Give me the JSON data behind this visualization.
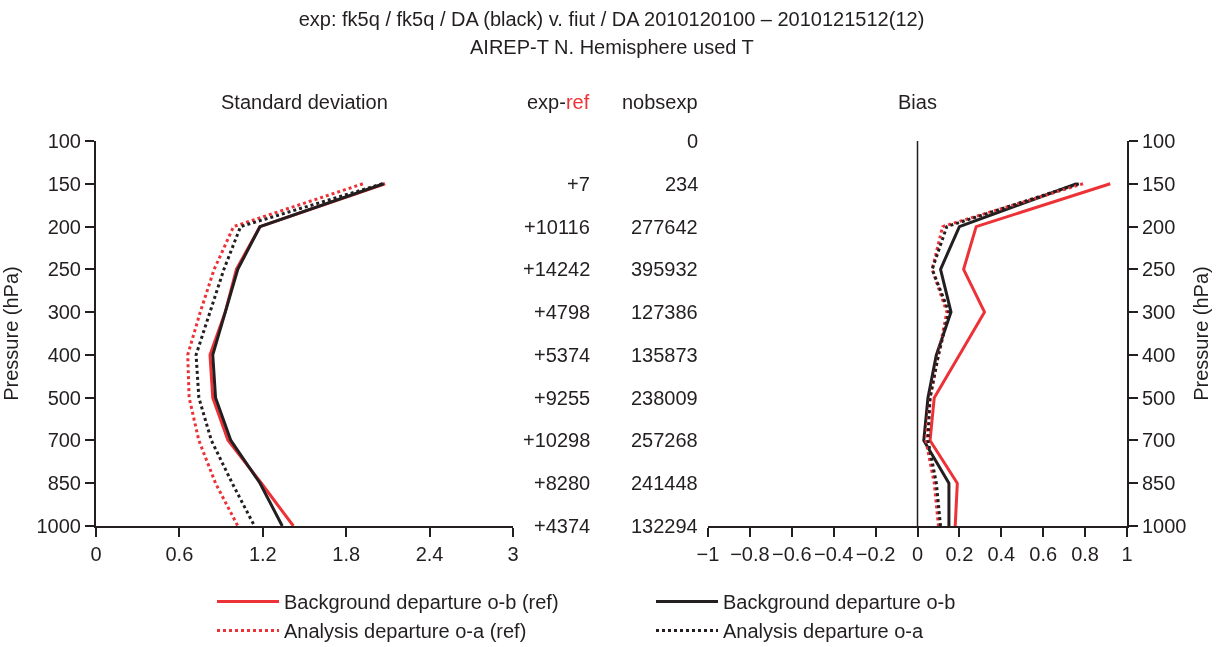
{
  "chart_data": [
    {
      "type": "other",
      "title": "exp: fk5q / fk5q / DA (black) v. fiut / DA 2010120100 – 2010121512(12)",
      "subtitle": "AIREP-T N. Hemisphere used T"
    },
    {
      "type": "line",
      "title": "Standard deviation",
      "ylabel": "Pressure (hPa)",
      "orientation": "horizontal",
      "categories": [
        "100",
        "150",
        "200",
        "250",
        "300",
        "400",
        "500",
        "700",
        "850",
        "1000"
      ],
      "xlim": [
        0,
        3
      ],
      "xticks": [
        0,
        0.6,
        1.2,
        1.8,
        2.4,
        3
      ],
      "legend": "bottom",
      "series": [
        {
          "name": "Background departure o-b (ref)",
          "color": "#ed3237",
          "line_style": "solid",
          "values": [
            null,
            2.08,
            1.18,
            1.01,
            0.93,
            0.82,
            0.84,
            0.95,
            1.19,
            1.42
          ]
        },
        {
          "name": "Background departure o-b",
          "color": "#231f20",
          "line_style": "solid",
          "values": [
            null,
            2.07,
            1.18,
            1.02,
            0.93,
            0.84,
            0.86,
            0.97,
            1.18,
            1.34
          ]
        },
        {
          "name": "Analysis departure o-a (ref)",
          "color": "#ed3237",
          "line_style": "dotted",
          "values": [
            null,
            1.92,
            0.99,
            0.85,
            0.75,
            0.66,
            0.67,
            0.74,
            0.86,
            1.02
          ]
        },
        {
          "name": "Analysis departure o-a",
          "color": "#231f20",
          "line_style": "dotted",
          "values": [
            null,
            2.06,
            1.04,
            0.92,
            0.82,
            0.72,
            0.74,
            0.83,
            0.98,
            1.14
          ]
        }
      ]
    },
    {
      "type": "other",
      "title": "exp-ref",
      "annotations": [
        "+7",
        "+10116",
        "+14242",
        "+4798",
        "+5374",
        "+9255",
        "+10298",
        "+8280",
        "+4374"
      ]
    },
    {
      "type": "other",
      "title": "nobsexp",
      "annotations": [
        "0",
        "234",
        "277642",
        "395932",
        "127386",
        "135873",
        "238009",
        "257268",
        "241448",
        "132294"
      ]
    },
    {
      "type": "line",
      "title": "Bias",
      "ylabel": "Pressure (hPa)",
      "orientation": "horizontal",
      "categories": [
        "100",
        "150",
        "200",
        "250",
        "300",
        "400",
        "500",
        "700",
        "850",
        "1000"
      ],
      "xlim": [
        -1,
        1
      ],
      "xticks": [
        -1,
        -0.8,
        -0.6,
        -0.4,
        -0.2,
        0,
        0.2,
        0.4,
        0.6,
        0.8,
        1
      ],
      "ref_lines": [
        {
          "axis": "x",
          "value": 0
        }
      ],
      "legend": "bottom",
      "series": [
        {
          "name": "Background departure o-b (ref)",
          "color": "#ed3237",
          "line_style": "solid",
          "values": [
            null,
            0.92,
            0.28,
            0.22,
            0.32,
            0.2,
            0.08,
            0.06,
            0.19,
            0.18
          ]
        },
        {
          "name": "Background departure o-b",
          "color": "#231f20",
          "line_style": "solid",
          "values": [
            null,
            0.76,
            0.2,
            0.11,
            0.16,
            0.09,
            0.05,
            0.03,
            0.15,
            0.15
          ]
        },
        {
          "name": "Analysis departure o-a (ref)",
          "color": "#ed3237",
          "line_style": "dotted",
          "values": [
            null,
            0.79,
            0.12,
            0.07,
            0.14,
            0.1,
            0.06,
            0.04,
            0.08,
            0.1
          ]
        },
        {
          "name": "Analysis departure o-a",
          "color": "#231f20",
          "line_style": "dotted",
          "values": [
            null,
            0.77,
            0.14,
            0.07,
            0.15,
            0.1,
            0.06,
            0.05,
            0.09,
            0.11
          ]
        }
      ]
    }
  ]
}
